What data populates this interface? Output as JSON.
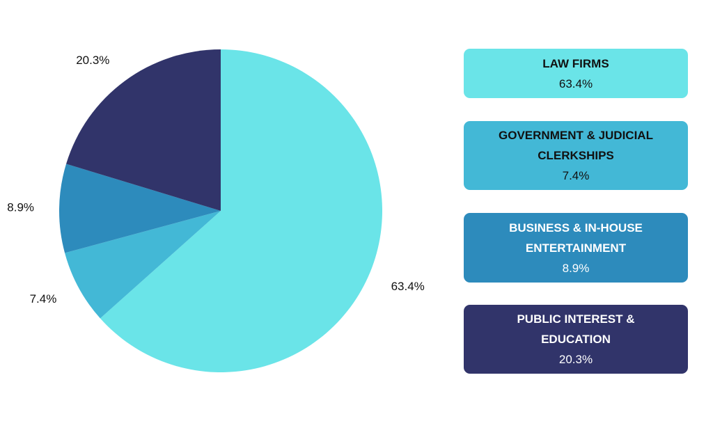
{
  "chart_data": {
    "type": "pie",
    "title": "",
    "series": [
      {
        "name": "LAW FIRMS",
        "value": 63.4,
        "label": "63.4%",
        "color": "#6AE4E8",
        "text_color": "#111111"
      },
      {
        "name": "GOVERNMENT & JUDICIAL CLERKSHIPS",
        "value": 7.4,
        "label": "7.4%",
        "color": "#43B8D6",
        "text_color": "#111111"
      },
      {
        "name": "BUSINESS & IN-HOUSE ENTERTAINMENT",
        "value": 8.9,
        "label": "8.9%",
        "color": "#2D8BBC",
        "text_color": "#ffffff"
      },
      {
        "name": "PUBLIC INTEREST & EDUCATION",
        "value": 20.3,
        "label": "20.3%",
        "color": "#31346A",
        "text_color": "#ffffff"
      }
    ],
    "legend_position": "right"
  }
}
